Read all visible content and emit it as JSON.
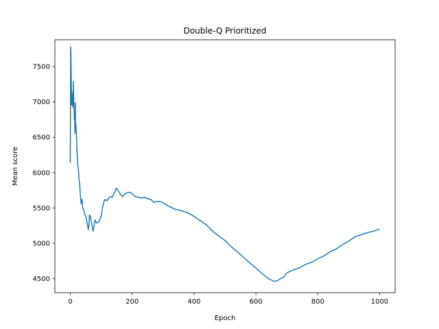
{
  "chart_data": {
    "type": "line",
    "title": "Double-Q Prioritized",
    "xlabel": "Epoch",
    "ylabel": "Mean score",
    "xlim": [
      -50,
      1050
    ],
    "ylim": [
      4300,
      7880
    ],
    "xticks": [
      0,
      200,
      400,
      600,
      800,
      1000
    ],
    "yticks": [
      4500,
      5000,
      5500,
      6000,
      6500,
      7000,
      7500
    ],
    "grid": false,
    "color": "#1f77b4",
    "series": [
      {
        "values": [
          [
            0,
            6140
          ],
          [
            1,
            7780
          ],
          [
            2,
            7700
          ],
          [
            3,
            7300
          ],
          [
            4,
            6960
          ],
          [
            5,
            7150
          ],
          [
            6,
            6950
          ],
          [
            7,
            7040
          ],
          [
            8,
            7100
          ],
          [
            9,
            6920
          ],
          [
            10,
            7290
          ],
          [
            11,
            7000
          ],
          [
            12,
            6900
          ],
          [
            13,
            6750
          ],
          [
            14,
            6780
          ],
          [
            15,
            6550
          ],
          [
            16,
            6990
          ],
          [
            17,
            6600
          ],
          [
            18,
            6680
          ],
          [
            19,
            6620
          ],
          [
            20,
            6480
          ],
          [
            22,
            6260
          ],
          [
            24,
            6100
          ],
          [
            26,
            6050
          ],
          [
            28,
            5900
          ],
          [
            30,
            5850
          ],
          [
            32,
            5700
          ],
          [
            35,
            5560
          ],
          [
            38,
            5620
          ],
          [
            40,
            5500
          ],
          [
            43,
            5480
          ],
          [
            46,
            5420
          ],
          [
            50,
            5380
          ],
          [
            53,
            5320
          ],
          [
            56,
            5250
          ],
          [
            58,
            5190
          ],
          [
            60,
            5250
          ],
          [
            62,
            5400
          ],
          [
            65,
            5380
          ],
          [
            68,
            5300
          ],
          [
            71,
            5220
          ],
          [
            74,
            5170
          ],
          [
            77,
            5260
          ],
          [
            80,
            5330
          ],
          [
            84,
            5290
          ],
          [
            88,
            5290
          ],
          [
            92,
            5300
          ],
          [
            96,
            5340
          ],
          [
            100,
            5380
          ],
          [
            104,
            5500
          ],
          [
            108,
            5580
          ],
          [
            112,
            5620
          ],
          [
            118,
            5600
          ],
          [
            124,
            5640
          ],
          [
            130,
            5660
          ],
          [
            136,
            5650
          ],
          [
            140,
            5700
          ],
          [
            144,
            5720
          ],
          [
            148,
            5780
          ],
          [
            152,
            5760
          ],
          [
            158,
            5720
          ],
          [
            164,
            5680
          ],
          [
            170,
            5660
          ],
          [
            176,
            5700
          ],
          [
            182,
            5710
          ],
          [
            188,
            5720
          ],
          [
            194,
            5720
          ],
          [
            200,
            5700
          ],
          [
            210,
            5660
          ],
          [
            220,
            5650
          ],
          [
            230,
            5640
          ],
          [
            240,
            5650
          ],
          [
            250,
            5630
          ],
          [
            260,
            5620
          ],
          [
            270,
            5580
          ],
          [
            280,
            5590
          ],
          [
            290,
            5590
          ],
          [
            300,
            5570
          ],
          [
            320,
            5520
          ],
          [
            340,
            5480
          ],
          [
            360,
            5460
          ],
          [
            380,
            5430
          ],
          [
            400,
            5380
          ],
          [
            420,
            5320
          ],
          [
            440,
            5260
          ],
          [
            460,
            5170
          ],
          [
            480,
            5100
          ],
          [
            500,
            5040
          ],
          [
            520,
            4950
          ],
          [
            540,
            4880
          ],
          [
            560,
            4800
          ],
          [
            580,
            4720
          ],
          [
            600,
            4650
          ],
          [
            620,
            4570
          ],
          [
            640,
            4500
          ],
          [
            660,
            4460
          ],
          [
            670,
            4470
          ],
          [
            680,
            4500
          ],
          [
            690,
            4520
          ],
          [
            700,
            4580
          ],
          [
            720,
            4620
          ],
          [
            740,
            4650
          ],
          [
            760,
            4700
          ],
          [
            780,
            4730
          ],
          [
            800,
            4780
          ],
          [
            820,
            4820
          ],
          [
            840,
            4880
          ],
          [
            860,
            4920
          ],
          [
            880,
            4980
          ],
          [
            900,
            5030
          ],
          [
            920,
            5090
          ],
          [
            940,
            5120
          ],
          [
            960,
            5150
          ],
          [
            980,
            5170
          ],
          [
            1000,
            5200
          ]
        ]
      }
    ]
  }
}
